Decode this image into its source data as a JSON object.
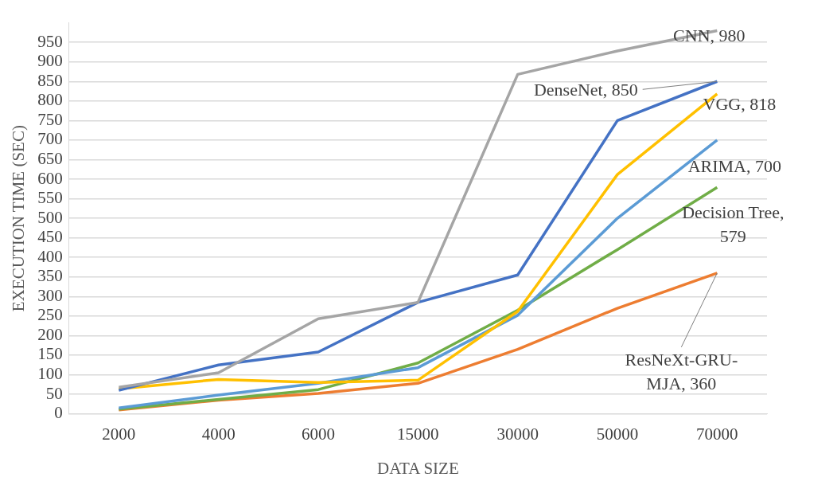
{
  "chart_data": {
    "type": "line",
    "xlabel": "DATA SIZE",
    "ylabel": "EXECUTION TIME (SEC)",
    "categories": [
      "2000",
      "4000",
      "6000",
      "15000",
      "30000",
      "50000",
      "70000"
    ],
    "ylim": [
      0,
      1000
    ],
    "yticks": [
      0,
      50,
      100,
      150,
      200,
      250,
      300,
      350,
      400,
      450,
      500,
      550,
      600,
      650,
      700,
      750,
      800,
      850,
      900,
      950
    ],
    "grid": "y",
    "legend": false,
    "marker": "none",
    "line_style": "solid",
    "series": [
      {
        "color": "#a5a5a5",
        "values": [
          68,
          105,
          243,
          285,
          868,
          928,
          980
        ]
      },
      {
        "color": "#4472c4",
        "values": [
          60,
          125,
          158,
          285,
          355,
          750,
          850
        ]
      },
      {
        "color": "#ffc000",
        "values": [
          64,
          88,
          80,
          86,
          262,
          612,
          818
        ]
      },
      {
        "color": "#5b9bd5",
        "values": [
          15,
          48,
          78,
          118,
          252,
          500,
          700
        ]
      },
      {
        "color": "#70ad47",
        "values": [
          12,
          37,
          62,
          130,
          265,
          420,
          579
        ]
      },
      {
        "color": "#ed7d31",
        "values": [
          10,
          35,
          52,
          78,
          165,
          270,
          360
        ]
      }
    ],
    "annotations": [
      {
        "text": "CNN, 980",
        "x": "70000",
        "y": 980
      },
      {
        "text": "DenseNet, 850",
        "x": "70000",
        "y": 850
      },
      {
        "text": "VGG, 818",
        "x": "70000",
        "y": 818
      },
      {
        "text": "ARIMA, 700",
        "x": "70000",
        "y": 700
      },
      {
        "text": "Decision Tree, 579",
        "x": "70000",
        "y": 579
      },
      {
        "text": "ResNeXt-GRU-MJA, 360",
        "x": "70000",
        "y": 360
      }
    ]
  }
}
